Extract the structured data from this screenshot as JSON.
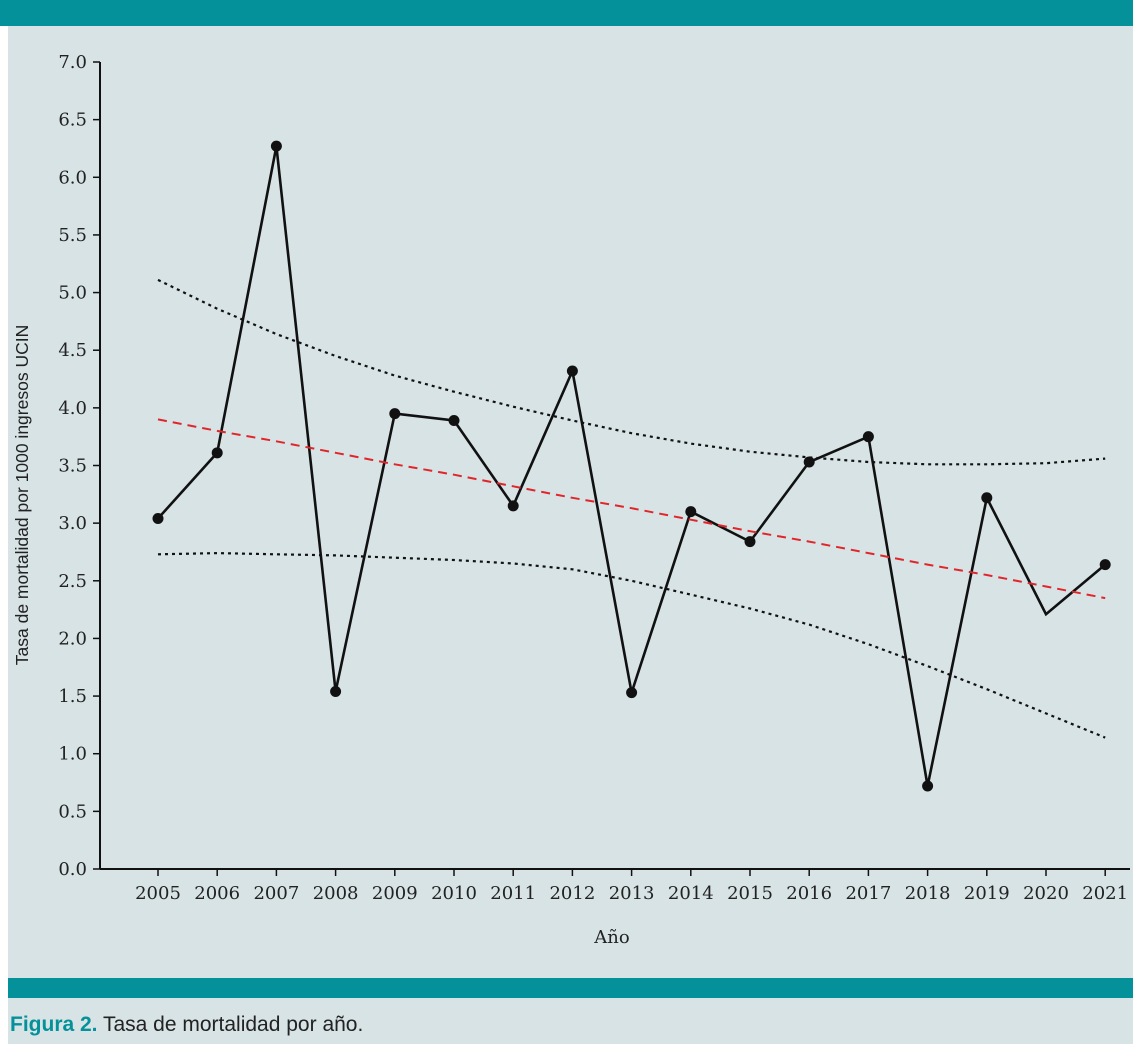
{
  "figure": {
    "caption_label": "Figura 2.",
    "caption_text": " Tasa de mortalidad por año."
  },
  "colors": {
    "bar": "#04919a",
    "panel": "#d7e3e5",
    "series": "#111111",
    "trend": "#e0262b",
    "band": "#111111"
  },
  "chart_data": {
    "type": "line",
    "xlabel": "Año",
    "ylabel": "Tasa de mortalidad por 1000 ingresos UCIN",
    "ylim": [
      0,
      7
    ],
    "yticks": [
      "0.0",
      "0.5",
      "1.0",
      "1.5",
      "2.0",
      "2.5",
      "3.0",
      "3.5",
      "4.0",
      "4.5",
      "5.0",
      "5.5",
      "6.0",
      "6.5",
      "7.0"
    ],
    "categories": [
      "2005",
      "2006",
      "2007",
      "2008",
      "2009",
      "2010",
      "2011",
      "2012",
      "2013",
      "2014",
      "2015",
      "2016",
      "2017",
      "2018",
      "2019",
      "2020",
      "2021"
    ],
    "series": [
      {
        "values": [
          3.04,
          3.61,
          6.27,
          1.54,
          3.95,
          3.89,
          3.15,
          4.32,
          1.53,
          3.1,
          2.84,
          3.53,
          3.75,
          0.72,
          3.22,
          2.21,
          2.64
        ],
        "markers": [
          true,
          true,
          true,
          true,
          true,
          true,
          true,
          true,
          true,
          true,
          true,
          true,
          true,
          true,
          true,
          false,
          true
        ],
        "style": "solid"
      },
      {
        "values": [
          3.9,
          3.8,
          3.71,
          3.61,
          3.51,
          3.42,
          3.32,
          3.22,
          3.13,
          3.03,
          2.93,
          2.84,
          2.74,
          2.64,
          2.55,
          2.45,
          2.35
        ],
        "style": "dashed-red"
      },
      {
        "values": [
          5.11,
          4.86,
          4.64,
          4.45,
          4.28,
          4.14,
          4.01,
          3.89,
          3.78,
          3.69,
          3.62,
          3.57,
          3.53,
          3.51,
          3.51,
          3.52,
          3.56
        ],
        "style": "dotted"
      },
      {
        "values": [
          2.73,
          2.74,
          2.73,
          2.72,
          2.7,
          2.68,
          2.65,
          2.6,
          2.5,
          2.38,
          2.26,
          2.12,
          1.95,
          1.76,
          1.56,
          1.35,
          1.14
        ],
        "style": "dotted"
      }
    ]
  }
}
